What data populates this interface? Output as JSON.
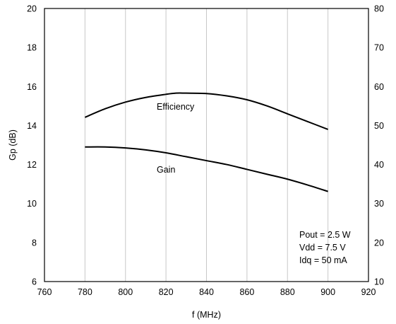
{
  "chart_data": {
    "type": "line",
    "title": "",
    "xlabel": "f (MHz)",
    "ylabel": "Gp (dB)",
    "y2label": "",
    "xlim": [
      760,
      920
    ],
    "ylim": [
      6,
      20
    ],
    "y2lim": [
      10,
      80
    ],
    "xticks": [
      760,
      780,
      800,
      820,
      840,
      860,
      880,
      900,
      920
    ],
    "yticks": [
      6,
      8,
      10,
      12,
      14,
      16,
      18,
      20
    ],
    "y2ticks": [
      10,
      20,
      30,
      40,
      50,
      60,
      70,
      80
    ],
    "grid": "vertical",
    "series": [
      {
        "name": "Efficiency",
        "axis": "right",
        "x": [
          780,
          790,
          800,
          810,
          820,
          825,
          830,
          840,
          850,
          860,
          870,
          880,
          890,
          900
        ],
        "y": [
          52.1,
          54.3,
          56.0,
          57.2,
          58.0,
          58.3,
          58.3,
          58.2,
          57.6,
          56.6,
          55.0,
          53.0,
          51.0,
          49.0
        ]
      },
      {
        "name": "Gain",
        "axis": "left",
        "x": [
          780,
          790,
          800,
          810,
          820,
          830,
          840,
          850,
          860,
          870,
          880,
          890,
          900
        ],
        "y": [
          12.9,
          12.9,
          12.85,
          12.75,
          12.6,
          12.4,
          12.2,
          12.0,
          11.75,
          11.5,
          11.25,
          10.95,
          10.62
        ]
      }
    ],
    "annotations": [
      "Pout = 2.5 W",
      "Vdd = 7.5 V",
      "Idq = 50 mA"
    ]
  }
}
